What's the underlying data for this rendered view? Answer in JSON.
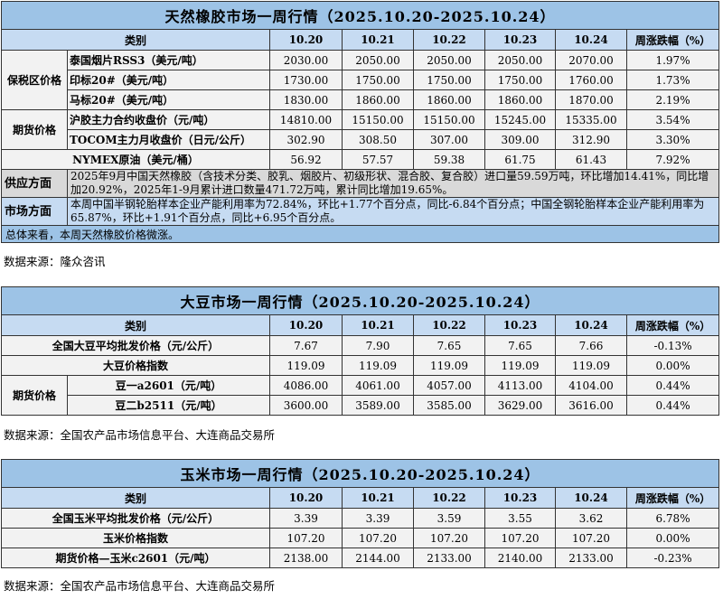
{
  "rubber": {
    "title": "天然橡胶市场一周行情（2025.10.20-2025.10.24）",
    "headers": [
      "类别",
      "10.20",
      "10.21",
      "10.22",
      "10.23",
      "10.24",
      "周涨跌幅（%）"
    ],
    "groups": {
      "bonded": "保税区价格",
      "futures": "期货价格"
    },
    "rows": [
      {
        "name": "泰国烟片RSS3（美元/吨）",
        "values": [
          "2030.00",
          "2050.00",
          "2050.00",
          "2050.00",
          "2070.00",
          "1.97%"
        ]
      },
      {
        "name": "印标20#（美元/吨）",
        "values": [
          "1730.00",
          "1750.00",
          "1750.00",
          "1750.00",
          "1760.00",
          "1.73%"
        ]
      },
      {
        "name": "马标20#（美元/吨）",
        "values": [
          "1830.00",
          "1860.00",
          "1860.00",
          "1860.00",
          "1870.00",
          "2.19%"
        ]
      },
      {
        "name": "沪胶主力合约收盘价（元/吨）",
        "values": [
          "14810.00",
          "15150.00",
          "15150.00",
          "15245.00",
          "15335.00",
          "3.54%"
        ]
      },
      {
        "name": "TOCOM主力月收盘价（日元/公斤）",
        "values": [
          "302.90",
          "308.50",
          "307.00",
          "309.00",
          "312.90",
          "3.30%"
        ]
      },
      {
        "name": "NYMEX原油（美元/桶）",
        "values": [
          "56.92",
          "57.57",
          "59.38",
          "61.75",
          "61.43",
          "7.92%"
        ]
      }
    ],
    "supply_label": "供应方面",
    "supply_text": "2025年9月中国天然橡胶（含技术分类、胶乳、烟胶片、初级形状、混合胶、复合胶）进口量59.59万吨，环比增加14.41%，同比增加20.92%，2025年1-9月累计进口数量471.72万吨，累计同比增加19.65%。",
    "market_label": "市场方面",
    "market_text": "本周中国半钢轮胎样本企业产能利用率为72.84%，环比+1.77个百分点，同比-6.84个百分点；中国全钢轮胎样本企业产能利用率为65.87%，环比+1.91个百分点，同比+6.95个百分点。",
    "summary": "总体来看，本周天然橡胶价格微涨。",
    "source": "数据来源：隆众咨讯"
  },
  "soybean": {
    "title": "大豆市场一周行情（2025.10.20-2025.10.24）",
    "headers": [
      "类别",
      "10.20",
      "10.21",
      "10.22",
      "10.23",
      "10.24",
      "周涨跌幅（%）"
    ],
    "futures_group": "期货价格",
    "rows": [
      {
        "name": "全国大豆平均批发价格（元/公斤）",
        "values": [
          "7.67",
          "7.90",
          "7.65",
          "7.65",
          "7.66",
          "-0.13%"
        ]
      },
      {
        "name": "大豆价格指数",
        "values": [
          "119.09",
          "119.09",
          "119.09",
          "119.09",
          "119.09",
          "0.00%"
        ]
      },
      {
        "name": "豆一a2601（元/吨）",
        "values": [
          "4086.00",
          "4061.00",
          "4057.00",
          "4113.00",
          "4104.00",
          "0.44%"
        ]
      },
      {
        "name": "豆二b2511（元/吨）",
        "values": [
          "3600.00",
          "3589.00",
          "3585.00",
          "3629.00",
          "3616.00",
          "0.44%"
        ]
      }
    ],
    "source": "数据来源：全国农产品市场信息平台、大连商品交易所"
  },
  "corn": {
    "title": "玉米市场一周行情（2025.10.20-2025.10.24）",
    "headers": [
      "类别",
      "10.20",
      "10.21",
      "10.22",
      "10.23",
      "10.24",
      "周涨跌幅（%）"
    ],
    "rows": [
      {
        "name": "全国玉米平均批发价格（元/公斤）",
        "values": [
          "3.39",
          "3.39",
          "3.59",
          "3.55",
          "3.62",
          "6.78%"
        ]
      },
      {
        "name": "玉米价格指数",
        "values": [
          "107.20",
          "107.20",
          "107.20",
          "107.20",
          "107.20",
          "0.00%"
        ]
      },
      {
        "name": "期货价格—玉米c2601（元/吨）",
        "values": [
          "2138.00",
          "2144.00",
          "2133.00",
          "2140.00",
          "2133.00",
          "-0.23%"
        ]
      }
    ],
    "source": "数据来源：全国农产品市场信息平台、大连商品交易所"
  },
  "colors": {
    "title_bg": "#9dc3e6",
    "header_bg": "#c6dbf2",
    "cell_bg": "#f2f2f2",
    "supply_bg": "#d9d9d9"
  }
}
